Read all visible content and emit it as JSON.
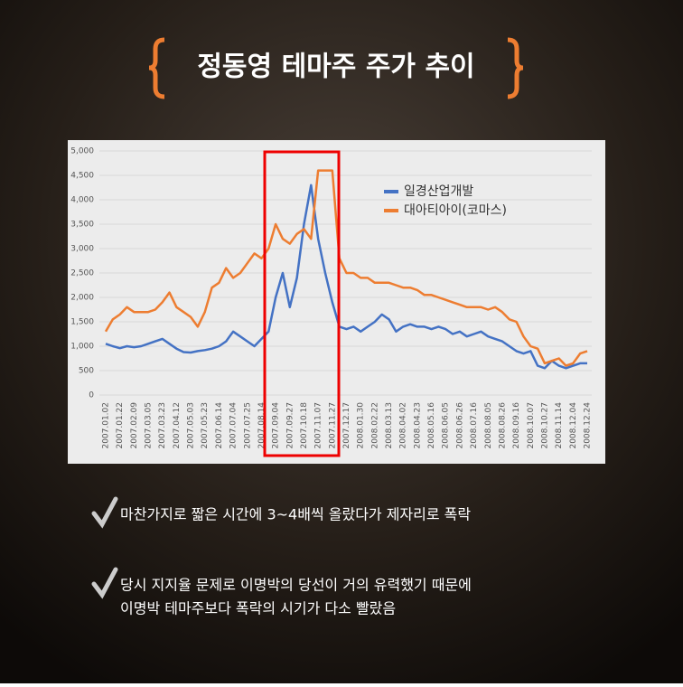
{
  "chart_data": {
    "type": "line",
    "title": "정동영 테마주 주가 추이",
    "categories": [
      "2007.01.02",
      null,
      "2007.01.22",
      null,
      "2007.02.09",
      null,
      "2007.03.05",
      null,
      "2007.03.23",
      null,
      "2007.04.12",
      null,
      "2007.05.03",
      null,
      "2007.05.23",
      null,
      "2007.06.14",
      null,
      "2007.07.04",
      null,
      "2007.07.25",
      null,
      "2007.08.14",
      null,
      "2007.09.04",
      null,
      "2007.09.27",
      null,
      "2007.10.18",
      null,
      "2007.11.07",
      null,
      "2007.11.27",
      null,
      "2007.12.17",
      null,
      "2008.01.30",
      null,
      "2008.02.22",
      null,
      "2008.03.13",
      null,
      "2008.04.02",
      null,
      "2008.04.23",
      null,
      "2008.05.16",
      null,
      "2008.06.05",
      null,
      "2008.06.26",
      null,
      "2008.07.16",
      null,
      "2008.08.05",
      null,
      "2008.08.26",
      null,
      "2008.09.16",
      null,
      "2008.10.07",
      null,
      "2008.10.27",
      null,
      "2008.11.14",
      null,
      "2008.12.04",
      null,
      "2008.12.24"
    ],
    "series": [
      {
        "name": "일경산업개발",
        "color": "#4472c4",
        "values": [
          1050,
          1000,
          960,
          1000,
          980,
          1000,
          1050,
          1100,
          1150,
          1050,
          950,
          880,
          870,
          900,
          920,
          950,
          1000,
          1100,
          1300,
          1200,
          1100,
          1000,
          1150,
          1300,
          2000,
          2500,
          1800,
          2400,
          3500,
          4300,
          3200,
          2500,
          1900,
          1400,
          1350,
          1400,
          1300,
          1400,
          1500,
          1650,
          1550,
          1300,
          1400,
          1450,
          1400,
          1400,
          1350,
          1400,
          1350,
          1250,
          1300,
          1200,
          1250,
          1300,
          1200,
          1150,
          1100,
          1000,
          900,
          850,
          900,
          600,
          550,
          700,
          600,
          550,
          600,
          650,
          650
        ]
      },
      {
        "name": "대아티아이(코마스)",
        "color": "#ed7d31",
        "values": [
          1300,
          1550,
          1650,
          1800,
          1700,
          1700,
          1700,
          1750,
          1900,
          2100,
          1800,
          1700,
          1600,
          1400,
          1700,
          2200,
          2300,
          2600,
          2400,
          2500,
          2700,
          2900,
          2800,
          3000,
          3500,
          3200,
          3100,
          3300,
          3400,
          3200,
          4600,
          4600,
          4600,
          2800,
          2500,
          2500,
          2400,
          2400,
          2300,
          2300,
          2300,
          2250,
          2200,
          2200,
          2150,
          2050,
          2050,
          2000,
          1950,
          1900,
          1850,
          1800,
          1800,
          1800,
          1750,
          1800,
          1700,
          1550,
          1500,
          1200,
          1000,
          950,
          650,
          700,
          750,
          600,
          650,
          850,
          900
        ]
      }
    ],
    "ylim": [
      0,
      5000
    ],
    "yticks": [
      0,
      500,
      {
        "value": 1000,
        "label": "1,000"
      },
      {
        "value": 1500,
        "label": "1,500"
      },
      {
        "value": 2000,
        "label": "2,000"
      },
      {
        "value": 2500,
        "label": "2,500"
      },
      {
        "value": 3000,
        "label": "3,000"
      },
      {
        "value": 3500,
        "label": "3,500"
      },
      {
        "value": 4000,
        "label": "4,000"
      },
      {
        "value": 4500,
        "label": "4,500"
      },
      {
        "value": 5000,
        "label": "5,000"
      }
    ],
    "grid": true,
    "legend": "upper right"
  },
  "notes": [
    [
      "마찬가지로 짧은 시간에 3~4배씩 올랐다가 제자리로 폭락"
    ],
    [
      "당시 지지율 문제로 이명박의 당선이 거의 유력했기 때문에",
      "이명박 테마주보다 폭락의 시기가 다소 빨랐음"
    ]
  ]
}
